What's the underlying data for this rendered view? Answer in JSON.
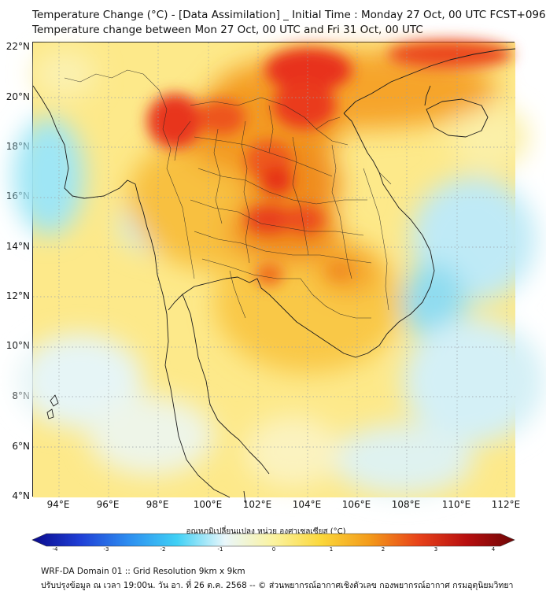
{
  "title_line1": "Temperature Change (°C) - [Data Assimilation] _ Initial Time : Monday 27 Oct, 00 UTC FCST+096",
  "title_line2": "Temperature change between Mon 27 Oct, 00 UTC and Fri 31 Oct, 00 UTC",
  "lat_labels": [
    "22°N",
    "20°N",
    "18°N",
    "16°N",
    "14°N",
    "12°N",
    "10°N",
    "8°N",
    "6°N",
    "4°N"
  ],
  "lon_labels": [
    "94°E",
    "96°E",
    "98°E",
    "100°E",
    "102°E",
    "104°E",
    "106°E",
    "108°E",
    "110°E",
    "112°E"
  ],
  "colorbar": {
    "title": "อุณหภูมิเปลี่ยนแปลง หน่วย องศาเซลเซียส (°C)",
    "ticks": [
      "-4",
      "-3",
      "-2",
      "-1",
      "0",
      "1",
      "2",
      "3",
      "4"
    ],
    "colors": [
      "#0a0a8c",
      "#1f3fd6",
      "#2d8ef0",
      "#3fd0f5",
      "#eaf7fb",
      "#fbf3a0",
      "#fbd73a",
      "#f39a1a",
      "#e8431a",
      "#b80f0f",
      "#6e0606"
    ]
  },
  "footer_line1": "WRF-DA Domain 01 :: Grid Resolution 9km x 9km",
  "footer_line2": "ปรับปรุงข้อมูล ณ เวลา 19:00น. วัน อา. ที่ 26 ต.ค. 2568 -- © ส่วนพยากรณ์อากาศเชิงตัวเลข กองพยากรณ์อากาศ กรมอุตุนิยมวิทยา"
}
